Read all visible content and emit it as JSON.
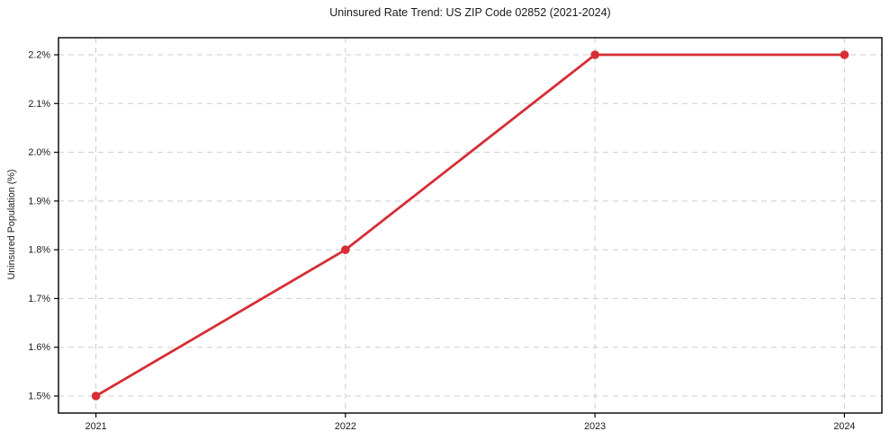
{
  "chart_data": {
    "type": "line",
    "title": "Uninsured Rate Trend: US ZIP Code 02852 (2021-2024)",
    "xlabel": "",
    "ylabel": "Uninsured Population (%)",
    "x": [
      2021,
      2022,
      2023,
      2024
    ],
    "values": [
      1.5,
      1.8,
      2.2,
      2.2
    ],
    "series_name": "Uninsured rate",
    "xticks": [
      {
        "value": 2021,
        "label": "2021"
      },
      {
        "value": 2022,
        "label": "2022"
      },
      {
        "value": 2023,
        "label": "2023"
      },
      {
        "value": 2024,
        "label": "2024"
      }
    ],
    "yticks": [
      {
        "value": 1.5,
        "label": "1.5%"
      },
      {
        "value": 1.6,
        "label": "1.6%"
      },
      {
        "value": 1.7,
        "label": "1.7%"
      },
      {
        "value": 1.8,
        "label": "1.8%"
      },
      {
        "value": 1.9,
        "label": "1.9%"
      },
      {
        "value": 2.0,
        "label": "2.0%"
      },
      {
        "value": 2.1,
        "label": "2.1%"
      },
      {
        "value": 2.2,
        "label": "2.2%"
      }
    ],
    "xlim": [
      2020.85,
      2024.15
    ],
    "ylim": [
      1.465,
      2.235
    ],
    "grid": true,
    "legend": false,
    "colors": {
      "line": "#d62e35",
      "marker": "#d62e35",
      "grid": "#cdcdcd",
      "spine": "#000000",
      "text": "#1a1a1a",
      "background": "#ffffff"
    }
  }
}
